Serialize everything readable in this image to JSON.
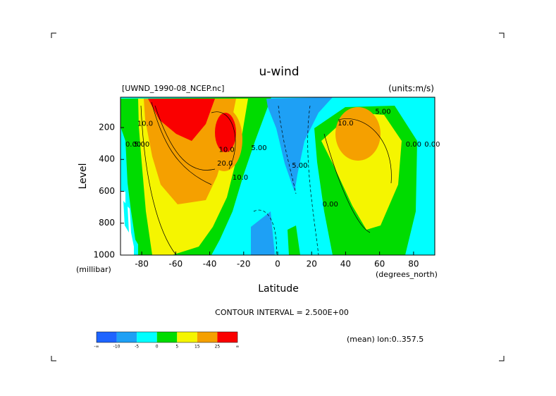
{
  "chart_data": {
    "type": "contour",
    "title": "u-wind",
    "file_label": "[UWND_1990-08_NCEP.nc]",
    "units_label": "(units:m/s)",
    "x_label": "Latitude",
    "x_units": "(degrees_north)",
    "y_label": "Level",
    "y_units": "(millibar)",
    "footer": "CONTOUR INTERVAL = 2.500E+00",
    "mean_label": "(mean) lon:0..357.5",
    "xlim": [
      -92.5,
      92.5
    ],
    "xticks": [
      -80,
      -60,
      -40,
      -20,
      0,
      20,
      40,
      60,
      80
    ],
    "ylim": [
      1000,
      10
    ],
    "yticks": [
      200,
      400,
      600,
      800,
      1000
    ],
    "colorbar": {
      "levels": [
        -10,
        -5,
        0,
        5,
        15,
        25
      ],
      "colors": [
        "#1e64ff",
        "#1ea0f5",
        "#00ffff",
        "#00dc00",
        "#f5f500",
        "#f5a000",
        "#fa0000"
      ],
      "end_labels": [
        "-∞",
        "∞"
      ]
    },
    "annotations": [
      {
        "text": "10.0",
        "lat": -78,
        "level": 175
      },
      {
        "text": "5.00",
        "lat": -80,
        "level": 307
      },
      {
        "text": "0.00",
        "lat": -85,
        "level": 307
      },
      {
        "text": "10.0",
        "lat": -30,
        "level": 340
      },
      {
        "text": "20.0",
        "lat": -31,
        "level": 426
      },
      {
        "text": "10.0",
        "lat": -22,
        "level": 514
      },
      {
        "text": "5.00",
        "lat": -11,
        "level": 329
      },
      {
        "text": "5.00",
        "lat": 13,
        "level": 439
      },
      {
        "text": "0.00",
        "lat": 31,
        "level": 682
      },
      {
        "text": "10.0",
        "lat": 40,
        "level": 174
      },
      {
        "text": "5.00",
        "lat": 62,
        "level": 100
      },
      {
        "text": "0.00",
        "lat": 80,
        "level": 307
      },
      {
        "text": "0.00",
        "lat": 91,
        "level": 307
      }
    ]
  }
}
